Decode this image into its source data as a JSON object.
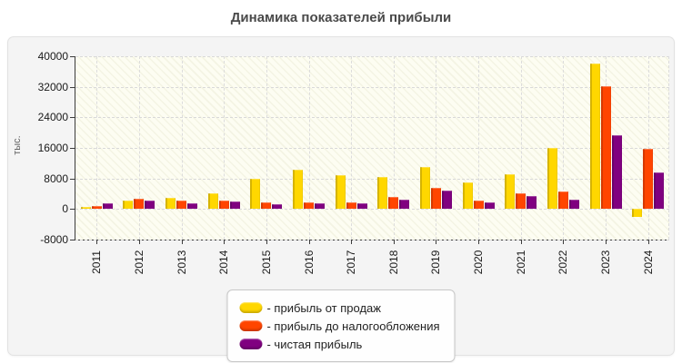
{
  "title": "Динамика показателей прибыли",
  "chart_data": {
    "type": "bar",
    "title": "Динамика показателей прибыли",
    "ylabel": "тыс.",
    "xlabel": "",
    "ylim": [
      -8000,
      40000
    ],
    "yticks": [
      40000,
      32000,
      24000,
      16000,
      8000,
      0,
      -8000
    ],
    "grid": true,
    "legend_position": "bottom",
    "legend_prefix": "- ",
    "categories": [
      "2011",
      "2012",
      "2013",
      "2014",
      "2015",
      "2016",
      "2017",
      "2018",
      "2019",
      "2020",
      "2021",
      "2022",
      "2023",
      "2024"
    ],
    "series": [
      {
        "name": "прибыль от продаж",
        "color": "#FFD700",
        "values": [
          600,
          2200,
          3000,
          4200,
          7900,
          10400,
          8900,
          8400,
          10900,
          7000,
          9100,
          16100,
          38000,
          -2000
        ]
      },
      {
        "name": "прибыль до налогообложения",
        "color": "#FF4500",
        "values": [
          700,
          2600,
          2100,
          2100,
          1700,
          1700,
          1800,
          3200,
          5500,
          2200,
          4100,
          4700,
          32200,
          15800
        ]
      },
      {
        "name": "чистая прибыль",
        "color": "#800080",
        "values": [
          1400,
          2100,
          1600,
          1900,
          1300,
          1400,
          1500,
          2500,
          4800,
          1800,
          3300,
          2400,
          19300,
          9500
        ]
      }
    ]
  }
}
